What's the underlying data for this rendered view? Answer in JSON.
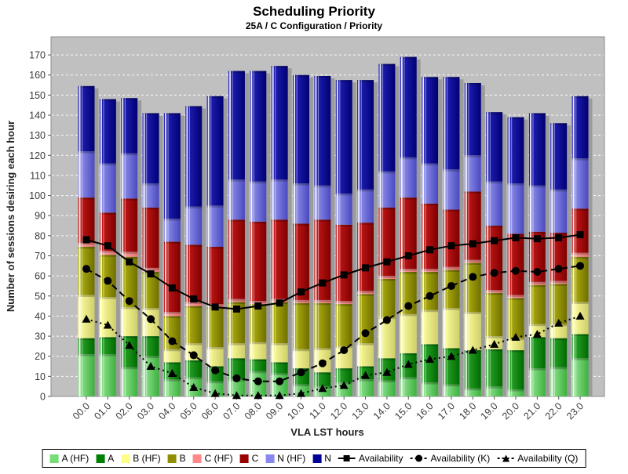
{
  "title": "Scheduling Priority",
  "subtitle": "25A / C Configuration /  Priority",
  "chart_data": {
    "type": "bar",
    "stacked": true,
    "title": "Scheduling Priority",
    "subtitle": "25A / C Configuration /  Priority",
    "xlabel": "VLA LST hours",
    "ylabel": "Number of sessions desiring each hour",
    "ylim": [
      0,
      179
    ],
    "ytick_step": 10,
    "ytick_max": 170,
    "grid": "horizontal-dashed-white",
    "plot_bg": "#c0c0c0",
    "legend_position": "bottom",
    "categories": [
      "00.0",
      "01.0",
      "02.0",
      "03.0",
      "04.0",
      "05.0",
      "06.0",
      "07.0",
      "08.0",
      "09.0",
      "10.0",
      "11.0",
      "12.0",
      "13.0",
      "14.0",
      "15.0",
      "16.0",
      "17.0",
      "18.0",
      "19.0",
      "20.0",
      "21.0",
      "22.0",
      "23.0"
    ],
    "bar_series": [
      {
        "name": "A (HF)",
        "swatch": "#77dd77",
        "grad_light": "#9be89b",
        "grad_dark": "#3cb13c",
        "values": [
          21,
          21,
          14.5,
          20,
          8.5,
          9.5,
          7.5,
          8.5,
          12.5,
          11.5,
          6,
          5,
          7,
          8.5,
          8,
          9.5,
          7,
          6,
          4,
          5,
          3.5,
          14,
          14.5,
          19
        ]
      },
      {
        "name": "A",
        "swatch": "#008000",
        "grad_light": "#2fae2f",
        "grad_dark": "#006a00",
        "values": [
          8,
          8.5,
          15.5,
          10,
          8.5,
          8.5,
          7.5,
          10.5,
          6,
          5.5,
          8,
          7,
          7,
          6.5,
          11,
          12,
          19,
          18,
          19,
          18.5,
          19.5,
          15.5,
          14.5,
          12
        ]
      },
      {
        "name": "B (HF)",
        "swatch": "#ffff88",
        "grad_light": "#ffff9e",
        "grad_dark": "#cfcf6a",
        "values": [
          21.5,
          20,
          14.5,
          14,
          6.5,
          8.5,
          9.5,
          7.5,
          8.5,
          9.5,
          9.5,
          12,
          11,
          11.5,
          20.5,
          19.5,
          17,
          20,
          19,
          6.5,
          6,
          6.5,
          7,
          16
        ]
      },
      {
        "name": "B",
        "swatch": "#8f8f00",
        "grad_light": "#b9b912",
        "grad_dark": "#6f6f00",
        "values": [
          24,
          21,
          25,
          18,
          16.5,
          18.5,
          20,
          20.5,
          19,
          20.5,
          23,
          22.5,
          21,
          24.5,
          19,
          21,
          19,
          19,
          24.5,
          21.5,
          20,
          19.5,
          20,
          22.5
        ]
      },
      {
        "name": "C (HF)",
        "swatch": "#ff8888",
        "grad_light": "#ffacac",
        "grad_dark": "#e87070",
        "values": [
          2,
          2,
          2.5,
          2,
          2,
          2,
          1.5,
          1.5,
          1.5,
          1.5,
          1.5,
          1.5,
          1.5,
          1.5,
          1.5,
          1.5,
          1.5,
          1.5,
          1.5,
          1.5,
          1.5,
          1.5,
          1.5,
          2
        ]
      },
      {
        "name": "C",
        "swatch": "#990000",
        "grad_light": "#cf1b1b",
        "grad_dark": "#7e0000",
        "values": [
          22.5,
          19,
          26.5,
          30,
          35,
          28.5,
          28.5,
          39.5,
          39.5,
          39.5,
          38,
          40,
          38,
          34,
          34,
          35.5,
          32.5,
          28.5,
          34,
          32,
          30.5,
          25,
          24,
          22
        ]
      },
      {
        "name": "N (HF)",
        "swatch": "#8888ee",
        "grad_light": "#9a9af0",
        "grad_dark": "#4949c0",
        "values": [
          23,
          24.5,
          22.5,
          12,
          11.5,
          19,
          20.5,
          20,
          20,
          20,
          20,
          17,
          15.5,
          16.5,
          18,
          20,
          20,
          20,
          18,
          22,
          25,
          23,
          21.5,
          25
        ]
      },
      {
        "name": "N",
        "swatch": "#000099",
        "grad_light": "#2525c0",
        "grad_dark": "#000074",
        "values": [
          32.5,
          32,
          27.5,
          35,
          52.5,
          50,
          54.5,
          54,
          55,
          56.5,
          54,
          54.5,
          56.5,
          54.5,
          53.5,
          50,
          43,
          46,
          36,
          34.5,
          33,
          36,
          33,
          31
        ]
      }
    ],
    "line_series": [
      {
        "name": "Availability",
        "marker": "square",
        "dash": "none",
        "color": "#000000",
        "values": [
          78,
          75,
          67,
          61,
          54,
          48.5,
          44.5,
          43.5,
          45,
          46.5,
          52,
          56.5,
          60.5,
          64,
          67,
          70,
          73,
          75,
          76,
          77.5,
          79,
          78.5,
          79,
          80.5
        ]
      },
      {
        "name": "Availability (K)",
        "marker": "circle",
        "dash": "8 5",
        "color": "#000000",
        "values": [
          63.5,
          57.5,
          47.5,
          38.5,
          27.5,
          20.5,
          13,
          9,
          7.5,
          7.5,
          12,
          16.5,
          23,
          31.5,
          38,
          45,
          50,
          55,
          59.5,
          61.5,
          62.5,
          62,
          63.5,
          65
        ]
      },
      {
        "name": "Availability (Q)",
        "marker": "triangle",
        "dash": "2 4",
        "color": "#000000",
        "values": [
          38.5,
          35.5,
          25.5,
          15,
          11.5,
          4.5,
          1.5,
          0.5,
          0.5,
          0.5,
          1.5,
          4,
          5.5,
          10.5,
          12,
          16,
          18.5,
          20,
          23,
          26,
          29.5,
          31,
          36.5,
          40
        ]
      }
    ]
  }
}
